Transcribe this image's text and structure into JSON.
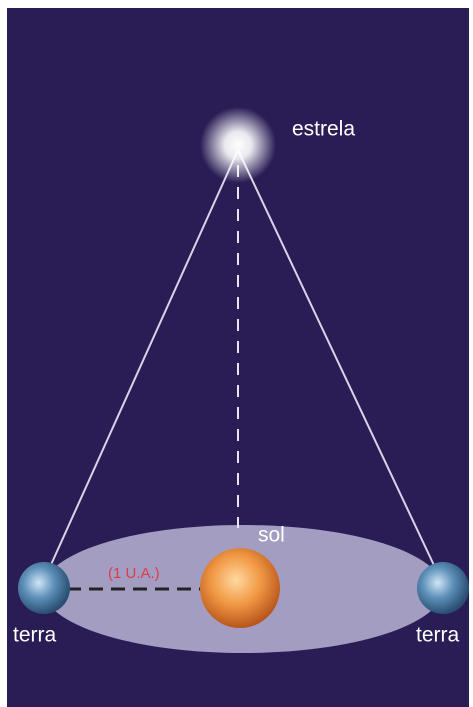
{
  "labels": {
    "star": "estrela",
    "sun": "sol",
    "earth_left": "terra",
    "earth_right": "terra",
    "distance": "(1 U.A.)"
  }
}
